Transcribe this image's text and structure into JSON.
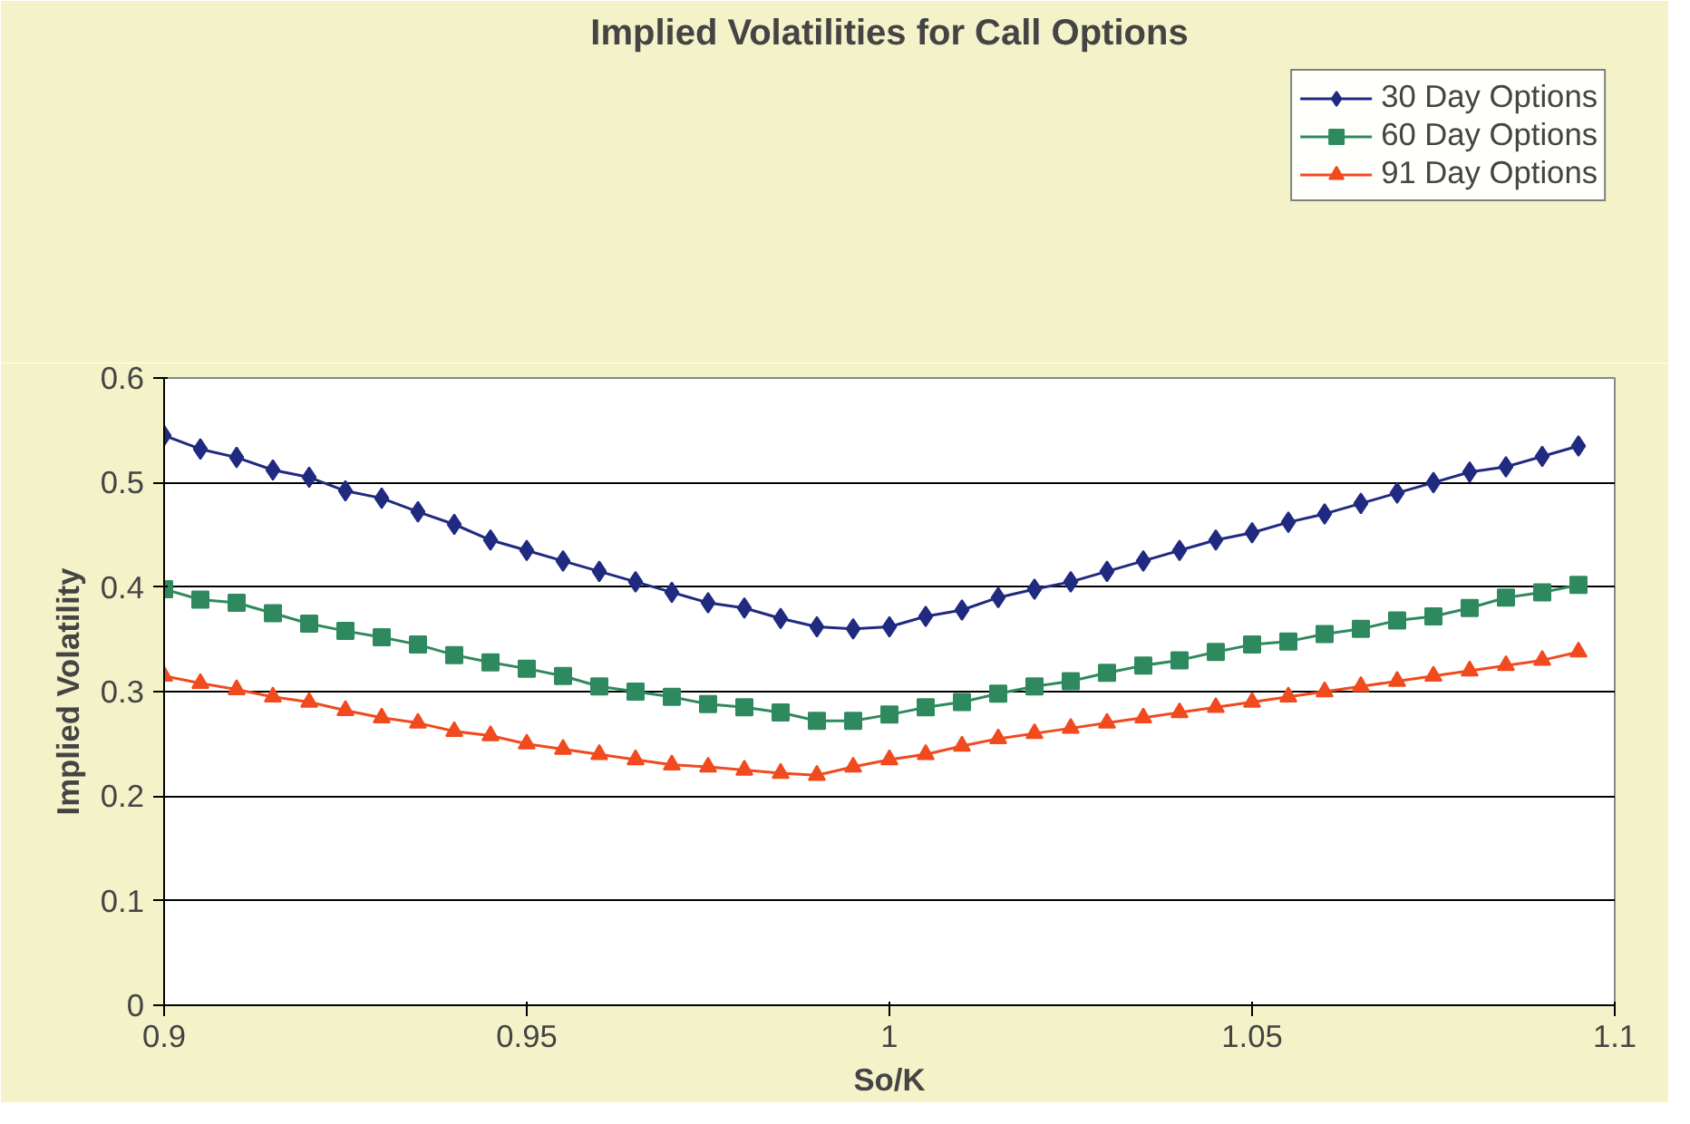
{
  "chart_data": {
    "type": "line",
    "title": "Implied Volatilities for Call Options",
    "xlabel": "So/K",
    "ylabel": "Implied Volatility",
    "x": [
      0.9,
      0.905,
      0.91,
      0.915,
      0.92,
      0.925,
      0.93,
      0.935,
      0.94,
      0.945,
      0.95,
      0.955,
      0.96,
      0.965,
      0.97,
      0.975,
      0.98,
      0.985,
      0.99,
      0.995,
      1.0,
      1.005,
      1.01,
      1.015,
      1.02,
      1.025,
      1.03,
      1.035,
      1.04,
      1.045,
      1.05,
      1.055,
      1.06,
      1.065,
      1.07,
      1.075,
      1.08,
      1.085,
      1.09,
      1.095
    ],
    "series": [
      {
        "name": "30 Day Options",
        "color": "#1f2a80",
        "marker": "diamond",
        "values": [
          0.545,
          0.532,
          0.524,
          0.512,
          0.505,
          0.492,
          0.485,
          0.472,
          0.46,
          0.445,
          0.435,
          0.425,
          0.415,
          0.405,
          0.395,
          0.385,
          0.38,
          0.37,
          0.362,
          0.36,
          0.362,
          0.372,
          0.378,
          0.39,
          0.398,
          0.405,
          0.415,
          0.425,
          0.435,
          0.445,
          0.452,
          0.462,
          0.47,
          0.48,
          0.49,
          0.5,
          0.51,
          0.515,
          0.525,
          0.535
        ]
      },
      {
        "name": "60 Day Options",
        "color": "#2e8a5e",
        "marker": "square",
        "values": [
          0.398,
          0.388,
          0.385,
          0.375,
          0.365,
          0.358,
          0.352,
          0.345,
          0.335,
          0.328,
          0.322,
          0.315,
          0.305,
          0.3,
          0.295,
          0.288,
          0.285,
          0.28,
          0.272,
          0.272,
          0.278,
          0.285,
          0.29,
          0.298,
          0.305,
          0.31,
          0.318,
          0.325,
          0.33,
          0.338,
          0.345,
          0.348,
          0.355,
          0.36,
          0.368,
          0.372,
          0.38,
          0.39,
          0.395,
          0.402
        ]
      },
      {
        "name": "91 Day Options",
        "color": "#f04a1e",
        "marker": "triangle",
        "values": [
          0.315,
          0.308,
          0.302,
          0.295,
          0.29,
          0.282,
          0.275,
          0.27,
          0.262,
          0.258,
          0.25,
          0.245,
          0.24,
          0.235,
          0.23,
          0.228,
          0.225,
          0.222,
          0.22,
          0.228,
          0.235,
          0.24,
          0.248,
          0.255,
          0.26,
          0.265,
          0.27,
          0.275,
          0.28,
          0.285,
          0.29,
          0.295,
          0.3,
          0.305,
          0.31,
          0.315,
          0.32,
          0.325,
          0.33,
          0.338
        ]
      }
    ],
    "xlim": [
      0.9,
      1.1
    ],
    "xticks": [
      0.9,
      0.95,
      1,
      1.05,
      1.1
    ],
    "ylim": [
      0,
      0.6
    ],
    "yticks": [
      0,
      0.1,
      0.2,
      0.3,
      0.4,
      0.5,
      0.6
    ],
    "grid": "y",
    "legend": "top right"
  }
}
